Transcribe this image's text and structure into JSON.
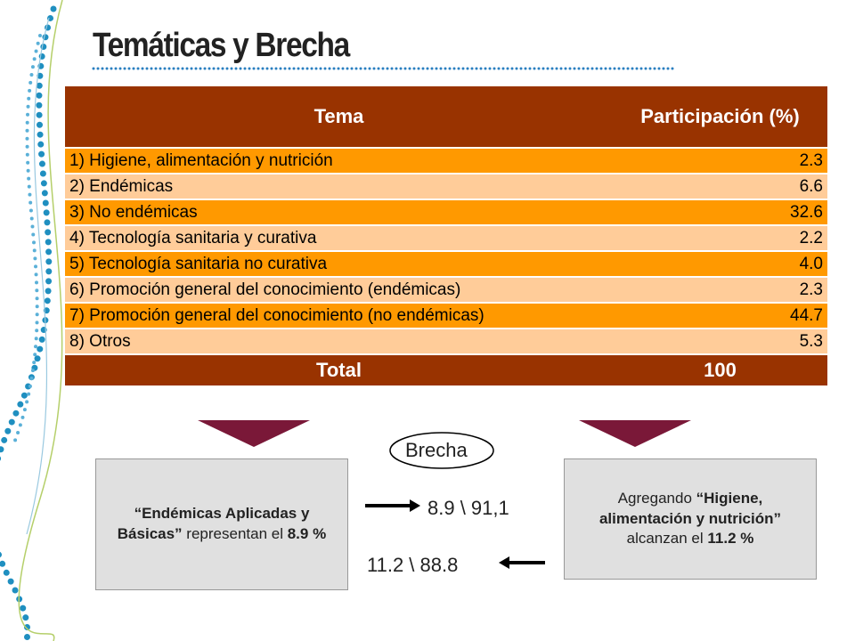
{
  "title": "Temáticas y Brecha",
  "table": {
    "header": [
      "Tema",
      "Participación (%)"
    ],
    "rows": [
      [
        "1) Higiene, alimentación y nutrición",
        "2.3"
      ],
      [
        "2) Endémicas",
        "6.6"
      ],
      [
        "3) No endémicas",
        "32.6"
      ],
      [
        "4) Tecnología sanitaria y curativa",
        "2.2"
      ],
      [
        "5) Tecnología sanitaria no curativa",
        "4.0"
      ],
      [
        "6) Promoción general del conocimiento (endémicas)",
        "2.3"
      ],
      [
        "7) Promoción general del conocimiento (no endémicas)",
        "44.7"
      ],
      [
        "8) Otros",
        "5.3"
      ]
    ],
    "total": [
      "Total",
      "100"
    ]
  },
  "gap_label": "Brecha",
  "left_box": [
    "“Endémicas Aplicadas y Básicas”",
    "representan el",
    "8.9 %"
  ],
  "right_box": [
    "Agregando",
    "“Higiene, alimentación y nutrición”",
    "alcanzan el",
    "11.2 %"
  ],
  "gap_left": "8.9 \\ 91,1",
  "gap_right": "11.2 \\ 88.8"
}
